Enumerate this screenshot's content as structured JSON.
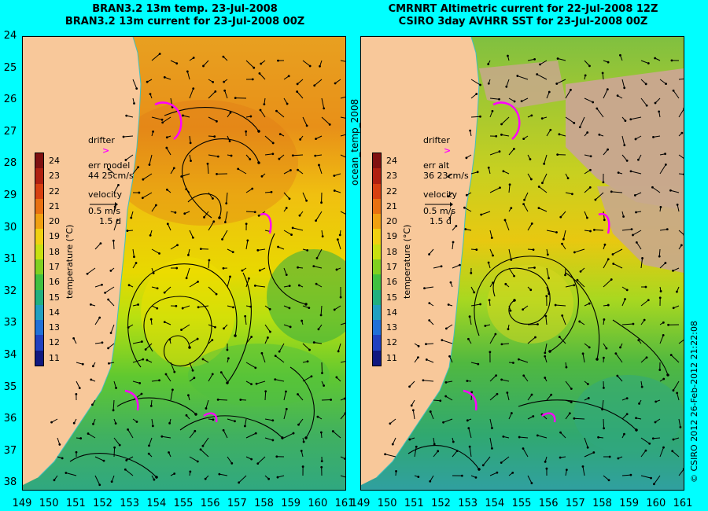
{
  "left_panel": {
    "title_line1": "BRAN3.2 13m temp. 23-Jul-2008",
    "title_line2": "BRAN3.2 13m current for 23-Jul-2008 00Z",
    "drifter_label": "drifter",
    "drifter_symbol": ">",
    "err_label": "err model",
    "err_value": "44 25cm/s",
    "velocity_label": "velocity",
    "velocity_scale": "0.5 m/s",
    "velocity_time": "1.5 d",
    "colorbar_label": "temperature (°C)"
  },
  "right_panel": {
    "title_line1": "CMRNRT Altimetric current for 22-Jul-2008 12Z",
    "title_line2": "CSIRO 3day AVHRR SST for 23-Jul-2008 00Z",
    "drifter_label": "drifter",
    "drifter_symbol": ">",
    "err_label": "err alt",
    "err_value": "36 23cm/s",
    "velocity_label": "velocity",
    "velocity_scale": "0.5 m/s",
    "velocity_time": "1.5 d",
    "colorbar_label": "temperature (°C)"
  },
  "vertical_center_label": "ocean_temp_2008",
  "copyright": "© CSIRO 2012   26-Feb-2012 21:22:08",
  "y_ticks": [
    "24",
    "25",
    "26",
    "27",
    "28",
    "29",
    "30",
    "31",
    "32",
    "33",
    "34",
    "35",
    "36",
    "37",
    "38"
  ],
  "x_ticks": [
    "149",
    "150",
    "151",
    "152",
    "153",
    "154",
    "155",
    "156",
    "157",
    "158",
    "159",
    "160",
    "161"
  ],
  "colorbar_ticks": [
    "24",
    "23",
    "22",
    "21",
    "20",
    "19",
    "18",
    "17",
    "16",
    "15",
    "14",
    "13",
    "12",
    "11"
  ],
  "colors": {
    "background": "#00ffff",
    "land": "#f8c89a",
    "cloud": "#c8a88c",
    "drifter": "#ff00ff",
    "coast_line": "#40c0c0"
  }
}
